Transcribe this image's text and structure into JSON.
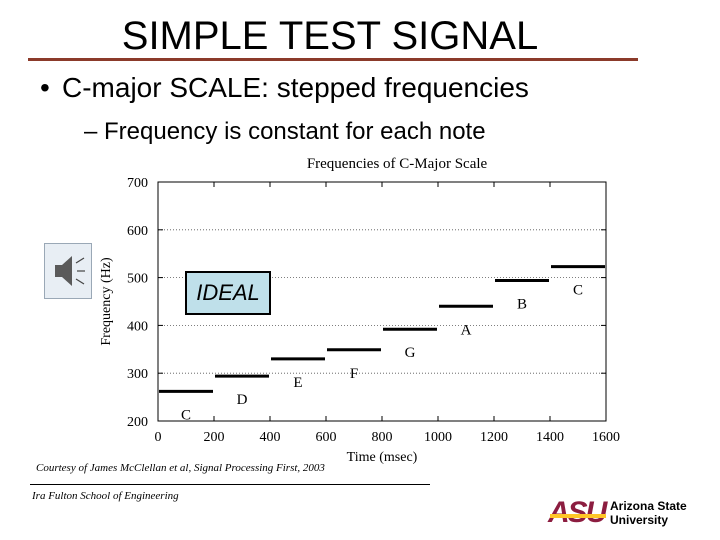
{
  "slide": {
    "title": "SIMPLE TEST SIGNAL",
    "bullet1": "C-major SCALE: stepped frequencies",
    "bullet2": "– Frequency is constant for each note",
    "ideal_label": "IDEAL",
    "courtesy": "Courtesy of James McClellan et al, Signal Processing First, 2003",
    "footer": "Ira Fulton School of Engineering",
    "logo_mark": "ASU",
    "logo_line1": "Arizona State",
    "logo_line2": "University",
    "speaker_icon": "speaker-icon",
    "accent_color": "#8b3a2a",
    "logo_color": "#8c1d40"
  },
  "chart_data": {
    "type": "line",
    "title": "Frequencies of C-Major Scale",
    "xlabel": "Time (msec)",
    "ylabel": "Frequency (Hz)",
    "xlim": [
      0,
      1600
    ],
    "ylim": [
      200,
      700
    ],
    "x_ticks": [
      "0",
      "200",
      "400",
      "600",
      "800",
      "1000",
      "1200",
      "1400",
      "1600"
    ],
    "y_ticks": [
      "200",
      "300",
      "400",
      "500",
      "600",
      "700"
    ],
    "grid": "horizontal dotted",
    "steps": [
      {
        "note": "C",
        "start": 0,
        "end": 200,
        "freq": 262
      },
      {
        "note": "D",
        "start": 200,
        "end": 400,
        "freq": 294
      },
      {
        "note": "E",
        "start": 400,
        "end": 600,
        "freq": 330
      },
      {
        "note": "F",
        "start": 600,
        "end": 800,
        "freq": 349
      },
      {
        "note": "G",
        "start": 800,
        "end": 1000,
        "freq": 392
      },
      {
        "note": "A",
        "start": 1000,
        "end": 1200,
        "freq": 440
      },
      {
        "note": "B",
        "start": 1200,
        "end": 1400,
        "freq": 494
      },
      {
        "note": "C",
        "start": 1400,
        "end": 1600,
        "freq": 523
      }
    ]
  }
}
